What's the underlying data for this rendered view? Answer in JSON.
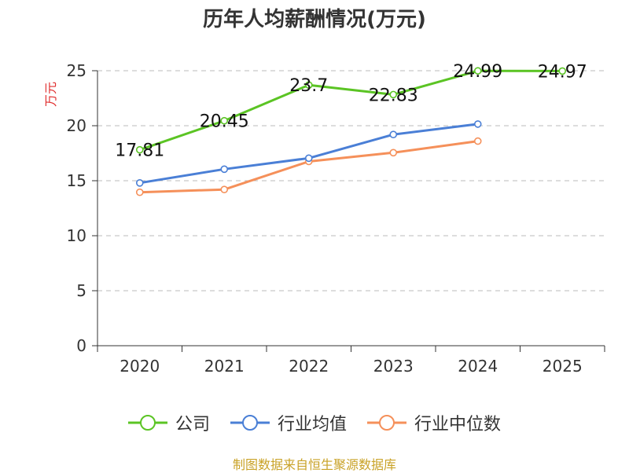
{
  "chart_data": {
    "type": "line",
    "title": "历年人均薪酬情况(万元)",
    "ylabel": "万元",
    "xlabel": "",
    "categories": [
      "2020",
      "2021",
      "2022",
      "2023",
      "2024",
      "2025"
    ],
    "ylim": [
      0,
      25
    ],
    "yticks": [
      0,
      5,
      10,
      15,
      20,
      25
    ],
    "grid": true,
    "legend_position": "bottom",
    "series": [
      {
        "name": "公司",
        "color": "#5bc424",
        "values": [
          17.81,
          20.45,
          23.7,
          22.83,
          24.99,
          24.97
        ],
        "labels": [
          "17.81",
          "20.45",
          "23.7",
          "22.83",
          "24.99",
          "24.97"
        ]
      },
      {
        "name": "行业均值",
        "color": "#4a7fd6",
        "values": [
          14.8,
          16.05,
          17.05,
          19.2,
          20.15,
          null
        ]
      },
      {
        "name": "行业中位数",
        "color": "#f5905a",
        "values": [
          13.95,
          14.2,
          16.75,
          17.55,
          18.6,
          null
        ]
      }
    ]
  },
  "source": "制图数据来自恒生聚源数据库",
  "colors": {
    "ylabel": "#e03030",
    "axis": "#333333",
    "grid": "#bbbbbb"
  }
}
